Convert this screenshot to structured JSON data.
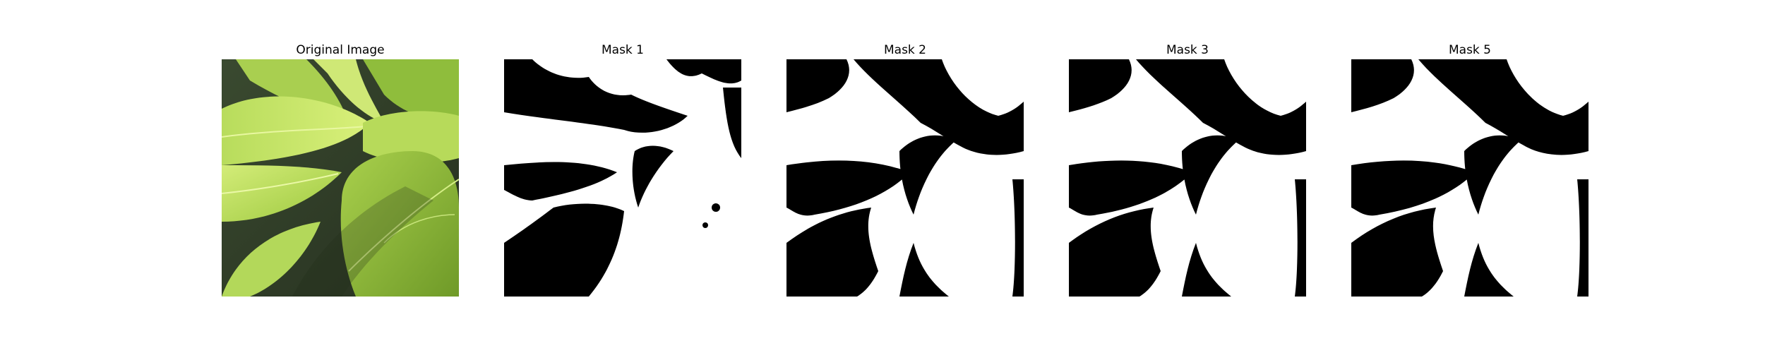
{
  "figure": {
    "panels": [
      {
        "title": "Original Image",
        "kind": "photo",
        "subject": "green leaves"
      },
      {
        "title": "Mask 1",
        "kind": "binary-mask"
      },
      {
        "title": "Mask 2",
        "kind": "binary-mask"
      },
      {
        "title": "Mask 3",
        "kind": "binary-mask"
      },
      {
        "title": "Mask 5",
        "kind": "binary-mask"
      }
    ],
    "colors": {
      "mask_foreground": "#ffffff",
      "mask_background": "#000000",
      "leaf_light": "#c9e86a",
      "leaf_mid": "#9cc83e",
      "leaf_dark": "#5e8a22",
      "shadow": "#2e3a26"
    }
  }
}
